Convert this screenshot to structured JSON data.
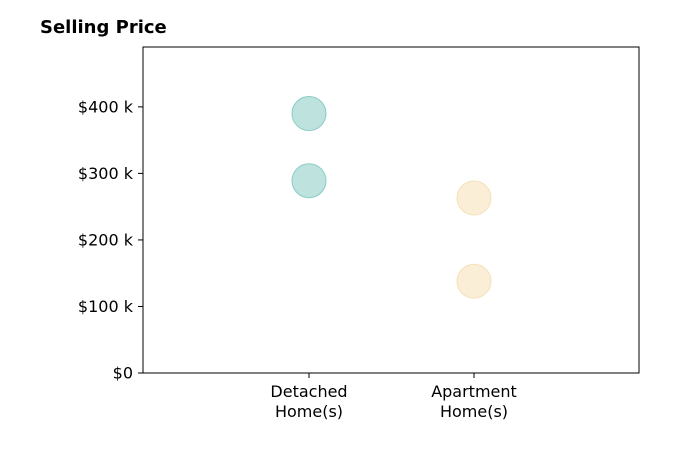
{
  "chart_data": {
    "type": "scatter",
    "title": "Selling Price",
    "xlabel": "",
    "ylabel": "",
    "categories": [
      "Detached\nHome(s)",
      "Apartment\nHome(s)"
    ],
    "ylim": [
      0,
      490000
    ],
    "yticks": [
      {
        "value": 0,
        "label": "$0"
      },
      {
        "value": 100000,
        "label": "$100 k"
      },
      {
        "value": 200000,
        "label": "$200 k"
      },
      {
        "value": 300000,
        "label": "$300 k"
      },
      {
        "value": 400000,
        "label": "$400 k"
      }
    ],
    "grid": false,
    "legend": "none",
    "series": [
      {
        "category_index": 0,
        "color": "#7ec8c0",
        "values": [
          390000,
          289000
        ]
      },
      {
        "category_index": 1,
        "color": "#f5deb0",
        "values": [
          263000,
          138000
        ]
      }
    ]
  }
}
